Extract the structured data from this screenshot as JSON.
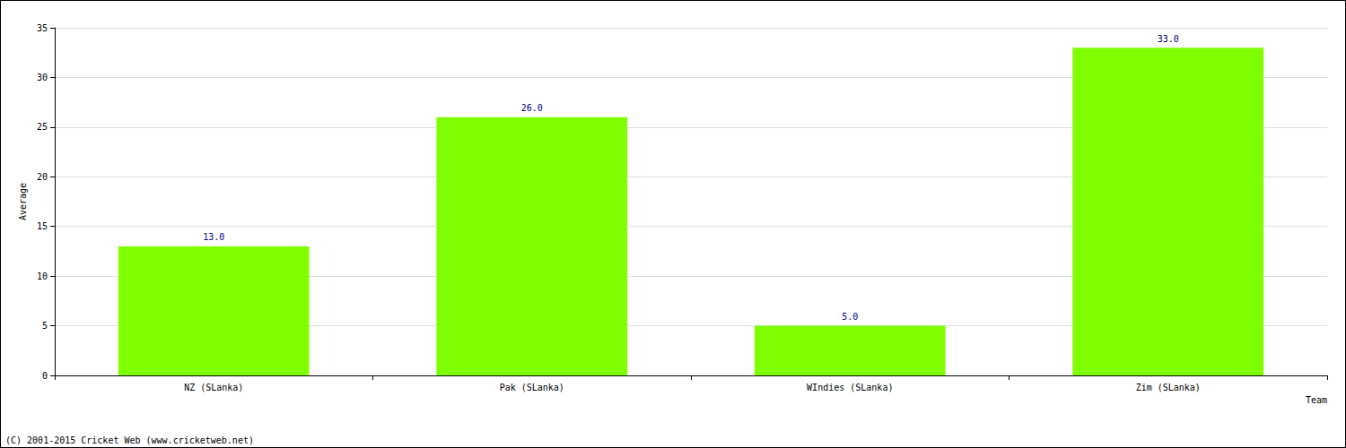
{
  "chart_data": {
    "type": "bar",
    "x_label": "Team",
    "y_label": "Average",
    "categories": [
      "NZ (SLanka)",
      "Pak (SLanka)",
      "WIndies (SLanka)",
      "Zim (SLanka)"
    ],
    "values": [
      13,
      26,
      5,
      33
    ],
    "value_labels": [
      "13.0",
      "26.0",
      "5.0",
      "33.0"
    ],
    "data_labels": true,
    "color": "#80ff00",
    "ylim": [
      0,
      35
    ],
    "yticks": [
      0,
      5,
      10,
      15,
      20,
      25,
      30,
      35
    ],
    "grid": true,
    "annotations": [
      "(C) 2001-2015 Cricket Web (www.cricketweb.net)"
    ]
  }
}
